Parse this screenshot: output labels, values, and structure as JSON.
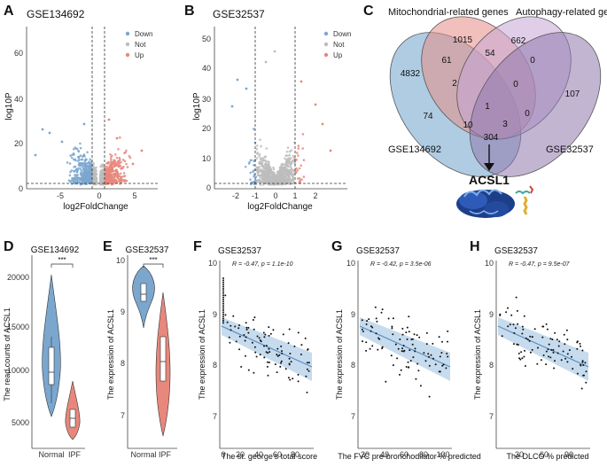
{
  "panels": {
    "A": {
      "label": "A",
      "title": "GSE134692",
      "xlabel": "log2FoldChange",
      "ylabel": "log10P",
      "xticks": [
        "-5",
        "0",
        "5"
      ],
      "yticks": [
        "0",
        "20",
        "40",
        "60"
      ],
      "legend": [
        "Down",
        "Not",
        "Up"
      ]
    },
    "B": {
      "label": "B",
      "title": "GSE32537",
      "xlabel": "log2FoldChange",
      "ylabel": "log10P",
      "xticks": [
        "-2",
        "-1",
        "0",
        "1",
        "2"
      ],
      "yticks": [
        "0",
        "10",
        "20",
        "30",
        "40",
        "50"
      ],
      "legend": [
        "Down",
        "Not",
        "Up"
      ]
    },
    "C": {
      "label": "C",
      "set_labels": [
        "Mitochondrial-related genes",
        "Autophagy-related genes",
        "GSE134692",
        "GSE32537"
      ],
      "counts": [
        "4832",
        "1015",
        "662",
        "107",
        "61",
        "54",
        "0",
        "2",
        "0",
        "74",
        "1",
        "10",
        "3",
        "0",
        "304"
      ],
      "gene": "ACSL1"
    },
    "D": {
      "label": "D",
      "title": "GSE134692",
      "ylabel": "The read counts of ACSL1",
      "groups": [
        "Normal",
        "IPF"
      ],
      "yticks": [
        "5000",
        "10000",
        "15000",
        "20000"
      ],
      "sig": "***"
    },
    "E": {
      "label": "E",
      "title": "GSE32537",
      "ylabel": "The expression of ACSL1",
      "groups": [
        "Normal",
        "IPF"
      ],
      "yticks": [
        "7",
        "8",
        "9",
        "10"
      ],
      "sig": "***"
    },
    "F": {
      "label": "F",
      "title": "GSE32537",
      "stat": "R = -0.47, p = 1.1e-10",
      "xlabel": "The st. george's total score",
      "ylabel": "The expression of ACSL1",
      "xticks": [
        "0",
        "20",
        "40",
        "60",
        "80"
      ],
      "yticks": [
        "7",
        "8",
        "9",
        "10"
      ]
    },
    "G": {
      "label": "G",
      "title": "GSE32537",
      "stat": "R = -0.42, p = 3.5e-06",
      "xlabel": "The FVC pre-bronchodilator % predicted",
      "ylabel": "The expression of ACSL1",
      "xticks": [
        "20",
        "40",
        "60",
        "80",
        "100"
      ],
      "yticks": [
        "7",
        "8",
        "9",
        "10"
      ]
    },
    "H": {
      "label": "H",
      "title": "GSE32537",
      "stat": "R = -0.47, p = 9.5e-07",
      "xlabel": "The DLCO % predicted",
      "ylabel": "The expression of ACSL1",
      "xticks": [
        "30",
        "60",
        "90"
      ],
      "yticks": [
        "7",
        "8",
        "9",
        "10"
      ]
    }
  },
  "colors": {
    "down": "#7ba7cf",
    "not": "#bdbdbd",
    "up": "#e8877c",
    "line": "#5b8fc2",
    "band": "#b8d2e8",
    "venn": [
      "#6ea3cc",
      "#e58c86",
      "#c7a5d6",
      "#8f78ad"
    ]
  }
}
